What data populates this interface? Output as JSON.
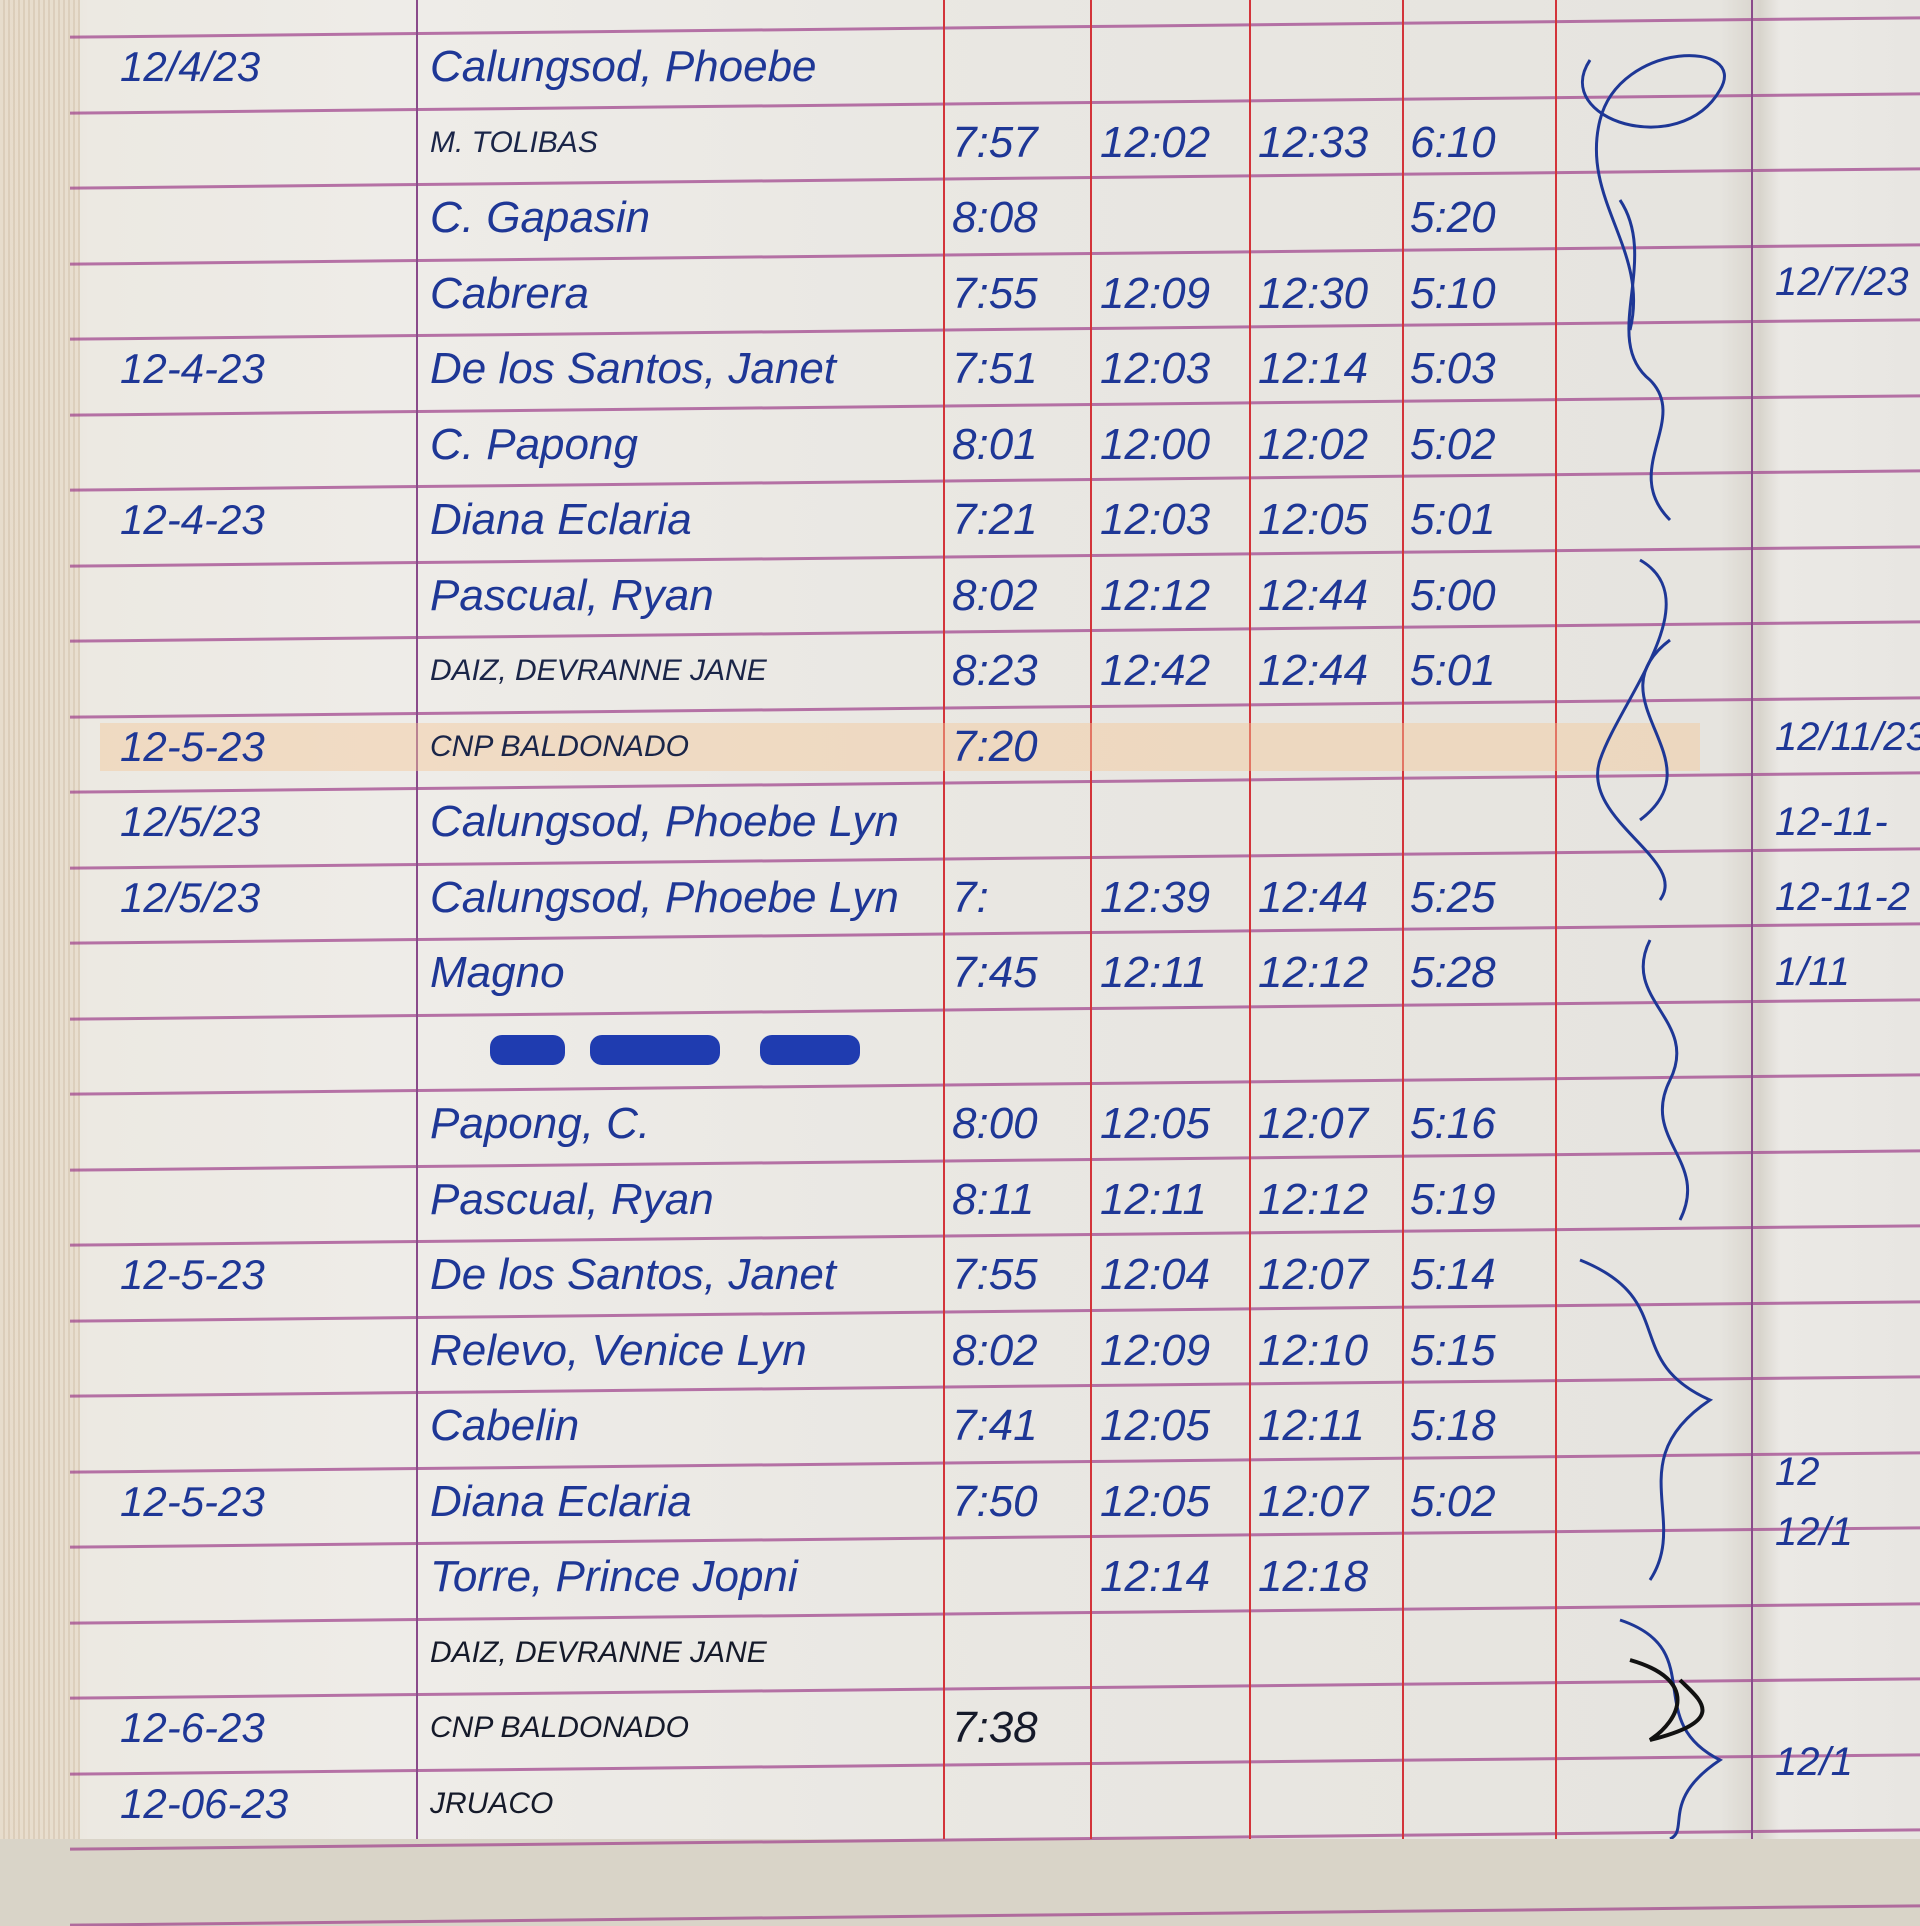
{
  "logbook": {
    "ink_color": "#1e3796",
    "rows": [
      {
        "date": "12/4/23",
        "name": "Calungsod, Phoebe",
        "in_am": "",
        "out_am": "",
        "in_pm": "",
        "out_pm": ""
      },
      {
        "date": "",
        "name": "M. TOLIBAS",
        "in_am": "7:57",
        "out_am": "12:02",
        "in_pm": "12:33",
        "out_pm": "6:10"
      },
      {
        "date": "",
        "name": "C. Gapasin",
        "in_am": "8:08",
        "out_am": "",
        "in_pm": "",
        "out_pm": "5:20"
      },
      {
        "date": "",
        "name": "Cabrera",
        "in_am": "7:55",
        "out_am": "12:09",
        "in_pm": "12:30",
        "out_pm": "5:10"
      },
      {
        "date": "12-4-23",
        "name": "De los Santos, Janet",
        "in_am": "7:51",
        "out_am": "12:03",
        "in_pm": "12:14",
        "out_pm": "5:03"
      },
      {
        "date": "",
        "name": "C. Papong",
        "in_am": "8:01",
        "out_am": "12:00",
        "in_pm": "12:02",
        "out_pm": "5:02"
      },
      {
        "date": "12-4-23",
        "name": "Diana Eclaria",
        "in_am": "7:21",
        "out_am": "12:03",
        "in_pm": "12:05",
        "out_pm": "5:01"
      },
      {
        "date": "",
        "name": "Pascual, Ryan",
        "in_am": "8:02",
        "out_am": "12:12",
        "in_pm": "12:44",
        "out_pm": "5:00"
      },
      {
        "date": "",
        "name": "DAIZ, DEVRANNE JANE",
        "in_am": "8:23",
        "out_am": "12:42",
        "in_pm": "12:44",
        "out_pm": "5:01"
      },
      {
        "date": "12-5-23",
        "name": "CNP BALDONADO",
        "in_am": "7:20",
        "out_am": "",
        "in_pm": "",
        "out_pm": ""
      },
      {
        "date": "12/5/23",
        "name": "Calungsod, Phoebe Lyn",
        "in_am": "",
        "out_am": "",
        "in_pm": "",
        "out_pm": ""
      },
      {
        "date": "12/5/23",
        "name": "Calungsod, Phoebe Lyn",
        "in_am": "7:",
        "out_am": "12:39",
        "in_pm": "12:44",
        "out_pm": "5:25"
      },
      {
        "date": "",
        "name": "Magno",
        "in_am": "7:45",
        "out_am": "12:11",
        "in_pm": "12:12",
        "out_pm": "5:28"
      },
      {
        "date": "",
        "name": "",
        "in_am": "",
        "out_am": "",
        "in_pm": "",
        "out_pm": ""
      },
      {
        "date": "",
        "name": "Papong, C.",
        "in_am": "8:00",
        "out_am": "12:05",
        "in_pm": "12:07",
        "out_pm": "5:16"
      },
      {
        "date": "",
        "name": "Pascual, Ryan",
        "in_am": "8:11",
        "out_am": "12:11",
        "in_pm": "12:12",
        "out_pm": "5:19"
      },
      {
        "date": "12-5-23",
        "name": "De los Santos, Janet",
        "in_am": "7:55",
        "out_am": "12:04",
        "in_pm": "12:07",
        "out_pm": "5:14"
      },
      {
        "date": "",
        "name": "Relevo, Venice Lyn",
        "in_am": "8:02",
        "out_am": "12:09",
        "in_pm": "12:10",
        "out_pm": "5:15"
      },
      {
        "date": "",
        "name": "Cabelin",
        "in_am": "7:41",
        "out_am": "12:05",
        "in_pm": "12:11",
        "out_pm": "5:18"
      },
      {
        "date": "12-5-23",
        "name": "Diana Eclaria",
        "in_am": "7:50",
        "out_am": "12:05",
        "in_pm": "12:07",
        "out_pm": "5:02"
      },
      {
        "date": "",
        "name": "Torre, Prince Jopni",
        "in_am": "",
        "out_am": "12:14",
        "in_pm": "12:18",
        "out_pm": ""
      },
      {
        "date": "",
        "name": "DAIZ, DEVRANNE JANE",
        "in_am": "",
        "out_am": "",
        "in_pm": "",
        "out_pm": ""
      },
      {
        "date": "12-6-23",
        "name": "CNP BALDONADO",
        "in_am": "7:38",
        "out_am": "",
        "in_pm": "",
        "out_pm": ""
      },
      {
        "date": "12-06-23",
        "name": "JRUACO",
        "in_am": "",
        "out_am": "",
        "in_pm": "",
        "out_pm": ""
      }
    ]
  },
  "facing_page": {
    "dates": [
      "12/7/23",
      "12/7/23",
      "12/11/23",
      "12-11-",
      "12-11-2",
      "1/11",
      "12",
      "12/1",
      "12/1"
    ]
  }
}
